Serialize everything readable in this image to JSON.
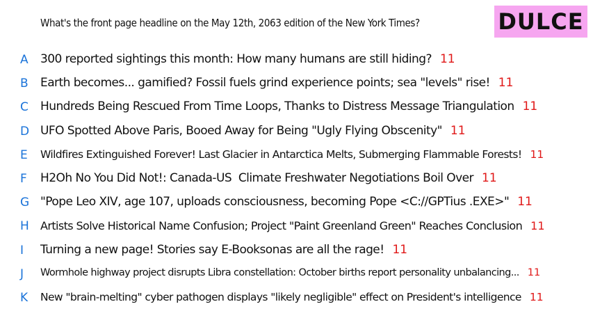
{
  "question": "What's the front page headline on the May 12th, 2063 edition of the New York Times?",
  "badge": "DULCE",
  "colors": {
    "letter": "#1a73d9",
    "count": "#e01818",
    "badge_bg": "#f6a6f0"
  },
  "options": [
    {
      "letter": "A",
      "text": "300 reported sightings this month: How many humans are still hiding?",
      "count": "11"
    },
    {
      "letter": "B",
      "text": "Earth becomes... gamified? Fossil fuels grind experience points; sea \"levels\" rise!",
      "count": "11"
    },
    {
      "letter": "C",
      "text": "Hundreds Being Rescued From Time Loops, Thanks to Distress Message Triangulation",
      "count": "11"
    },
    {
      "letter": "D",
      "text": "UFO Spotted Above Paris, Booed Away for Being \"Ugly Flying Obscenity\"",
      "count": "11"
    },
    {
      "letter": "E",
      "text": "Wildfires Extinguished Forever! Last Glacier in Antarctica Melts, Submerging Flammable Forests!",
      "count": "11"
    },
    {
      "letter": "F",
      "text": "H2Oh No You Did Not!: Canada-US  Climate Freshwater Negotiations Boil Over",
      "count": "11"
    },
    {
      "letter": "G",
      "text": "\"Pope Leo XIV, age 107, uploads consciousness, becoming Pope <C://GPTius .EXE>\"",
      "count": "11"
    },
    {
      "letter": "H",
      "text": "Artists Solve Historical Name Confusion; Project \"Paint Greenland Green\" Reaches Conclusion",
      "count": "11"
    },
    {
      "letter": "I",
      "text": "Turning a new page! Stories say E-Booksonas are all the rage!",
      "count": "11"
    },
    {
      "letter": "J",
      "text": "Wormhole highway project disrupts Libra constellation: October births report personality unbalancing...",
      "count": "11"
    },
    {
      "letter": "K",
      "text": "New \"brain-melting\" cyber pathogen displays \"likely negligible\" effect on President's intelligence",
      "count": "11"
    }
  ]
}
